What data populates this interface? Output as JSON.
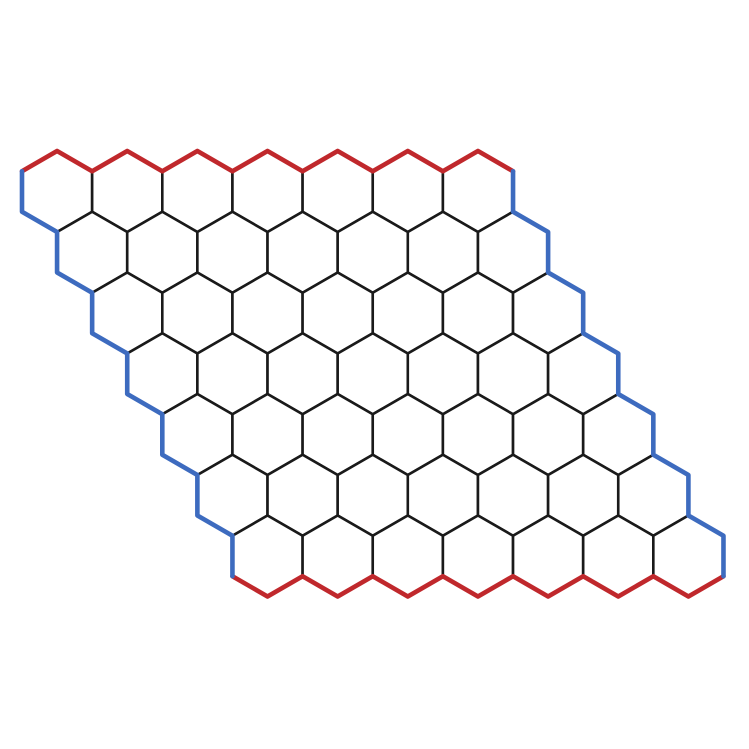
{
  "board": {
    "game": "hex",
    "size": 7,
    "cells": [
      [
        "",
        "",
        "",
        "",
        "",
        "",
        ""
      ],
      [
        "",
        "",
        "",
        "",
        "",
        "",
        ""
      ],
      [
        "",
        "",
        "",
        "",
        "",
        "",
        ""
      ],
      [
        "",
        "",
        "",
        "",
        "",
        "",
        ""
      ],
      [
        "",
        "",
        "",
        "",
        "",
        "",
        ""
      ],
      [
        "",
        "",
        "",
        "",
        "",
        "",
        ""
      ],
      [
        "",
        "",
        "",
        "",
        "",
        "",
        ""
      ]
    ],
    "players": [
      {
        "side": "top-and-bottom",
        "color": "#c0282c"
      },
      {
        "side": "left-and-right",
        "color": "#3d6bbf"
      }
    ],
    "cell_fill": "#ffffff",
    "grid_line_color": "#1a1a1a",
    "background": "#ffffff"
  }
}
